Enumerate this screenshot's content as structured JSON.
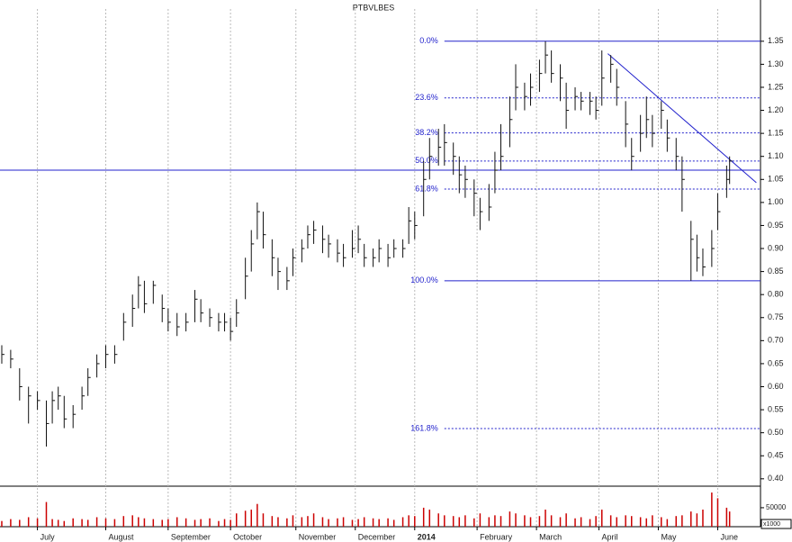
{
  "chart_data": {
    "type": "ohlc",
    "title": "PTBVLBES",
    "x": [
      0,
      3,
      6,
      9,
      12,
      15,
      17,
      19,
      21,
      24,
      27,
      29,
      32,
      35,
      38,
      41,
      44,
      46,
      48,
      51,
      54,
      56,
      59,
      62,
      65,
      67,
      70,
      73,
      75,
      77,
      79,
      82,
      84,
      86,
      88,
      91,
      93,
      96,
      98,
      101,
      103,
      105,
      108,
      110,
      113,
      115,
      118,
      120,
      122,
      125,
      127,
      130,
      132,
      135,
      137,
      139,
      142,
      144,
      147,
      149,
      152,
      154,
      156,
      159,
      161,
      164,
      166,
      168,
      171,
      173,
      176,
      178,
      181,
      183,
      185,
      188,
      190,
      193,
      195,
      198,
      200,
      202,
      205,
      207,
      210,
      212,
      215,
      217,
      219,
      222,
      224,
      227,
      229,
      232,
      234,
      236,
      239,
      241,
      244,
      245
    ],
    "high": [
      0.69,
      0.68,
      0.64,
      0.6,
      0.59,
      0.57,
      0.59,
      0.6,
      0.58,
      0.56,
      0.6,
      0.64,
      0.67,
      0.69,
      0.69,
      0.76,
      0.8,
      0.84,
      0.83,
      0.83,
      0.8,
      0.77,
      0.76,
      0.76,
      0.81,
      0.79,
      0.77,
      0.76,
      0.76,
      0.75,
      0.79,
      0.88,
      0.94,
      1.0,
      0.98,
      0.92,
      0.88,
      0.86,
      0.9,
      0.92,
      0.95,
      0.96,
      0.95,
      0.93,
      0.92,
      0.91,
      0.94,
      0.95,
      0.91,
      0.9,
      0.92,
      0.91,
      0.92,
      0.92,
      0.99,
      0.98,
      1.09,
      1.14,
      1.16,
      1.17,
      1.13,
      1.1,
      1.08,
      1.05,
      1.01,
      1.04,
      1.11,
      1.17,
      1.23,
      1.3,
      1.26,
      1.28,
      1.31,
      1.35,
      1.33,
      1.3,
      1.26,
      1.25,
      1.24,
      1.24,
      1.23,
      1.33,
      1.32,
      1.29,
      1.22,
      1.14,
      1.19,
      1.23,
      1.19,
      1.22,
      1.18,
      1.14,
      1.1,
      0.96,
      0.93,
      0.9,
      0.94,
      1.02,
      1.08,
      1.1
    ],
    "low": [
      0.65,
      0.64,
      0.57,
      0.52,
      0.55,
      0.47,
      0.52,
      0.55,
      0.51,
      0.51,
      0.55,
      0.58,
      0.62,
      0.64,
      0.65,
      0.7,
      0.73,
      0.77,
      0.76,
      0.78,
      0.74,
      0.72,
      0.71,
      0.72,
      0.74,
      0.74,
      0.73,
      0.72,
      0.72,
      0.7,
      0.73,
      0.79,
      0.85,
      0.92,
      0.9,
      0.84,
      0.81,
      0.81,
      0.84,
      0.87,
      0.9,
      0.91,
      0.89,
      0.88,
      0.87,
      0.86,
      0.88,
      0.89,
      0.86,
      0.86,
      0.87,
      0.86,
      0.88,
      0.88,
      0.91,
      0.92,
      0.97,
      1.05,
      1.08,
      1.08,
      1.06,
      1.02,
      1.01,
      0.97,
      0.94,
      0.96,
      1.02,
      1.07,
      1.12,
      1.2,
      1.2,
      1.21,
      1.24,
      1.28,
      1.26,
      1.22,
      1.16,
      1.2,
      1.2,
      1.19,
      1.18,
      1.21,
      1.26,
      1.21,
      1.12,
      1.07,
      1.11,
      1.14,
      1.12,
      1.16,
      1.11,
      1.07,
      0.98,
      0.83,
      0.85,
      0.84,
      0.86,
      0.94,
      1.01,
      1.04
    ],
    "close": [
      0.67,
      0.66,
      0.6,
      0.58,
      0.57,
      0.52,
      0.57,
      0.58,
      0.53,
      0.54,
      0.58,
      0.62,
      0.65,
      0.67,
      0.67,
      0.74,
      0.77,
      0.82,
      0.78,
      0.82,
      0.77,
      0.74,
      0.73,
      0.74,
      0.79,
      0.76,
      0.75,
      0.74,
      0.74,
      0.72,
      0.76,
      0.84,
      0.91,
      0.98,
      0.93,
      0.88,
      0.85,
      0.83,
      0.88,
      0.9,
      0.93,
      0.94,
      0.92,
      0.91,
      0.89,
      0.88,
      0.9,
      0.92,
      0.88,
      0.88,
      0.9,
      0.88,
      0.9,
      0.9,
      0.96,
      0.95,
      1.05,
      1.1,
      1.12,
      1.13,
      1.1,
      1.06,
      1.05,
      1.02,
      0.98,
      0.99,
      1.07,
      1.1,
      1.18,
      1.25,
      1.23,
      1.25,
      1.28,
      1.32,
      1.28,
      1.27,
      1.2,
      1.23,
      1.22,
      1.22,
      1.2,
      1.27,
      1.3,
      1.25,
      1.17,
      1.1,
      1.15,
      1.18,
      1.15,
      1.2,
      1.14,
      1.1,
      1.05,
      0.92,
      0.88,
      0.86,
      0.9,
      0.98,
      1.05,
      1.09
    ],
    "volume": [
      15000,
      20000,
      18000,
      25000,
      22000,
      65000,
      20000,
      18000,
      15000,
      22000,
      20000,
      18000,
      25000,
      22000,
      20000,
      28000,
      30000,
      25000,
      22000,
      20000,
      18000,
      20000,
      25000,
      22000,
      18000,
      20000,
      22000,
      15000,
      20000,
      18000,
      35000,
      42000,
      45000,
      60000,
      35000,
      28000,
      25000,
      22000,
      30000,
      25000,
      28000,
      35000,
      25000,
      20000,
      22000,
      25000,
      18000,
      20000,
      25000,
      22000,
      20000,
      22000,
      18000,
      25000,
      30000,
      28000,
      50000,
      45000,
      35000,
      30000,
      28000,
      25000,
      30000,
      22000,
      35000,
      25000,
      30000,
      28000,
      40000,
      35000,
      30000,
      25000,
      28000,
      45000,
      30000,
      25000,
      35000,
      22000,
      25000,
      20000,
      28000,
      45000,
      30000,
      25000,
      30000,
      28000,
      25000,
      22000,
      30000,
      25000,
      20000,
      28000,
      30000,
      40000,
      35000,
      45000,
      90000,
      75000,
      50000,
      40000
    ],
    "color": "#111111",
    "xlim": [
      -0.6,
      255.4
    ],
    "xticks": [
      {
        "value": 12,
        "label": "July"
      },
      {
        "value": 35,
        "label": "August"
      },
      {
        "value": 56,
        "label": "September"
      },
      {
        "value": 77,
        "label": "October"
      },
      {
        "value": 99,
        "label": "November"
      },
      {
        "value": 119,
        "label": "December"
      },
      {
        "value": 139,
        "label": "2014"
      },
      {
        "value": 160,
        "label": "February"
      },
      {
        "value": 180,
        "label": "March"
      },
      {
        "value": 201,
        "label": "April"
      },
      {
        "value": 221,
        "label": "May"
      },
      {
        "value": 241,
        "label": "June"
      }
    ],
    "ylim": [
      0.384,
      1.42
    ],
    "yticks": [
      {
        "value": 0.4,
        "label": "0.40"
      },
      0.45,
      {
        "value": 0.5,
        "label": "0.50"
      },
      0.55,
      {
        "value": 0.6,
        "label": "0.60"
      },
      0.65,
      {
        "value": 0.7,
        "label": "0.70"
      },
      0.75,
      {
        "value": 0.8,
        "label": "0.80"
      },
      0.85,
      {
        "value": 0.9,
        "label": "0.90"
      },
      0.95,
      {
        "value": 1.0,
        "label": "1.00"
      },
      1.05,
      {
        "value": 1.1,
        "label": "1.10"
      },
      1.15,
      {
        "value": 1.2,
        "label": "1.20"
      },
      1.25,
      {
        "value": 1.3,
        "label": "1.30"
      },
      1.35
    ],
    "volume_ylim": [
      0,
      102000
    ],
    "volume_yticks": [
      50000
    ],
    "volume_unit": "x1000",
    "grid": true,
    "fib_color": "#2222cc",
    "fib_start": 149,
    "fib_levels": [
      {
        "label": "0.0%",
        "price": 1.35
      },
      {
        "label": "23.6%",
        "price": 1.227
      },
      {
        "label": "38.2%",
        "price": 1.151
      },
      {
        "label": "50.0%",
        "price": 1.09
      },
      {
        "label": "61.8%",
        "price": 1.029
      },
      {
        "label": "100.0%",
        "price": 0.83
      },
      {
        "label": "161.8%",
        "price": 0.509
      }
    ],
    "hline": 1.07,
    "trendline": {
      "x": [
        204,
        254
      ],
      "y": [
        1.323,
        1.043
      ]
    }
  }
}
